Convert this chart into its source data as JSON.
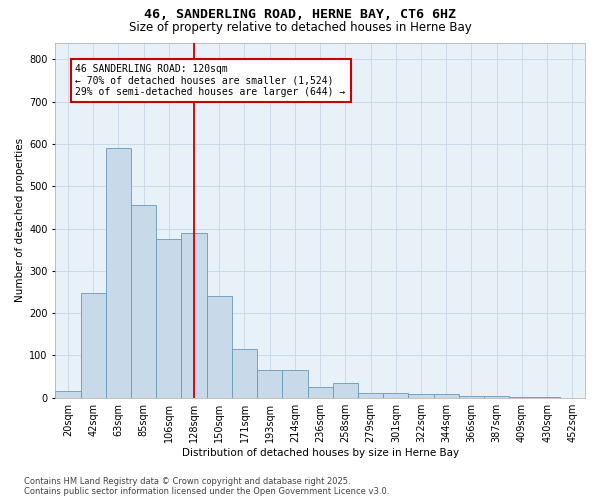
{
  "title1": "46, SANDERLING ROAD, HERNE BAY, CT6 6HZ",
  "title2": "Size of property relative to detached houses in Herne Bay",
  "xlabel": "Distribution of detached houses by size in Herne Bay",
  "ylabel": "Number of detached properties",
  "categories": [
    "20sqm",
    "42sqm",
    "63sqm",
    "85sqm",
    "106sqm",
    "128sqm",
    "150sqm",
    "171sqm",
    "193sqm",
    "214sqm",
    "236sqm",
    "258sqm",
    "279sqm",
    "301sqm",
    "322sqm",
    "344sqm",
    "366sqm",
    "387sqm",
    "409sqm",
    "430sqm",
    "452sqm"
  ],
  "values": [
    15,
    248,
    590,
    455,
    375,
    390,
    240,
    115,
    65,
    65,
    25,
    35,
    10,
    10,
    8,
    8,
    3,
    3,
    1,
    1,
    0
  ],
  "bar_color": "#c8d9ea",
  "bar_edge_color": "#6699bb",
  "grid_color": "#ccd9e8",
  "background_color": "#e8f0f8",
  "vline_color": "#cc0000",
  "vline_x_idx": 5.0,
  "annotation_text": "46 SANDERLING ROAD: 120sqm\n← 70% of detached houses are smaller (1,524)\n29% of semi-detached houses are larger (644) →",
  "annotation_box_facecolor": "#ffffff",
  "annotation_box_edgecolor": "#cc0000",
  "ylim": [
    0,
    840
  ],
  "yticks": [
    0,
    100,
    200,
    300,
    400,
    500,
    600,
    700,
    800
  ],
  "footer1": "Contains HM Land Registry data © Crown copyright and database right 2025.",
  "footer2": "Contains public sector information licensed under the Open Government Licence v3.0."
}
